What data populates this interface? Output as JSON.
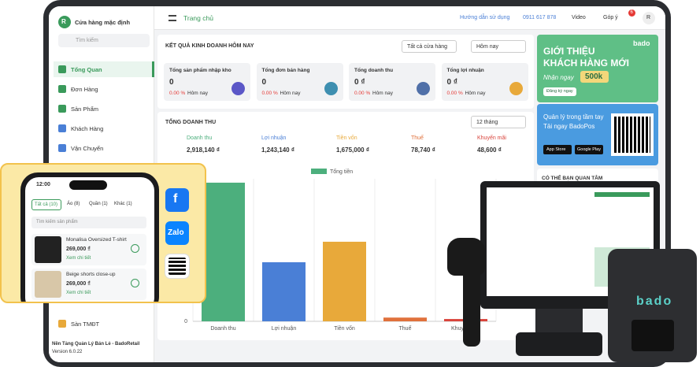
{
  "sidebar": {
    "avatar": "R",
    "store": "Cửa hàng mặc định",
    "search": "Tìm kiếm",
    "menu": [
      "Tổng Quan",
      "Đơn Hàng",
      "Sản Phẩm",
      "Khách Hàng",
      "Vận Chuyển",
      "Sàn TMĐT"
    ],
    "footer": [
      "Nền Tảng Quản Lý Bán Lẻ - BadoRetail",
      "Version 6.0.22"
    ]
  },
  "topbar": {
    "title": "Trang chủ",
    "help": "Hướng dẫn sử dụng",
    "phone": "0911 617 878",
    "video": "Video",
    "feedback": "Góp ý",
    "badge": "6",
    "avatar": "R"
  },
  "summary": {
    "title": "KẾT QUẢ KINH DOANH HÔM NAY",
    "store_filter": "Tất cả cửa hàng",
    "date_filter": "Hôm nay",
    "cards": [
      {
        "label": "Tổng sản phẩm nhập kho",
        "value": "0",
        "change": "0.00 %",
        "period": "Hôm nay"
      },
      {
        "label": "Tổng đơn bán hàng",
        "value": "0",
        "change": "0.00 %",
        "period": "Hôm nay"
      },
      {
        "label": "Tổng doanh thu",
        "value": "0 ₫",
        "change": "0.00 %",
        "period": "Hôm nay"
      },
      {
        "label": "Tổng lợi nhuận",
        "value": "0 ₫",
        "change": "0.00 %",
        "period": "Hôm nay"
      }
    ]
  },
  "revenue": {
    "title": "TỔNG DOANH THU",
    "period": "12 tháng",
    "chart": {
      "type": "bar",
      "legend": "Tổng tiền",
      "legend_color": "#4caf7d",
      "categories": [
        "Doanh thu",
        "Lợi nhuận",
        "Tiền vốn",
        "Thuế",
        "Khuyến mãi"
      ],
      "values": [
        2918140,
        1243140,
        1675000,
        78740,
        48600
      ],
      "value_labels": [
        "2,918,140 ₫",
        "1,243,140 ₫",
        "1,675,000 ₫",
        "78,740 ₫",
        "48,600 ₫"
      ],
      "colors": [
        "#4caf7d",
        "#4a7fd6",
        "#e8a93a",
        "#e0713c",
        "#d9443c"
      ],
      "ylim": [
        0,
        3000000
      ],
      "yticks": [
        0
      ]
    }
  },
  "banners": {
    "brand": "bado",
    "promo_title": "GIỚI THIỆU KHÁCH HÀNG MỚI",
    "promo_get": "Nhận ngay",
    "promo_amount": "500k",
    "promo_button": "Đăng ký ngay",
    "app_line1": "Quản lý trong tầm tay",
    "app_line2": "Tải ngay BadoPos",
    "app_store": "App Store",
    "google_play": "Google Play",
    "interest": "CÓ THỂ BẠN QUAN TÂM"
  },
  "phone": {
    "time": "12:00",
    "tabs": [
      "Tất cả (10)",
      "Áo (8)",
      "Quần (1)",
      "Khác (1)"
    ],
    "search": "Tìm kiếm sản phẩm",
    "products": [
      {
        "name": "Monalisa Oversized T-shirt",
        "price": "269,000 ₫",
        "link": "Xem chi tiết"
      },
      {
        "name": "Beige shorts close-up",
        "price": "269,000 ₫",
        "link": "Xem chi tiết"
      }
    ],
    "social": [
      "f",
      "Zalo"
    ]
  },
  "printer": {
    "brand": "bado"
  }
}
